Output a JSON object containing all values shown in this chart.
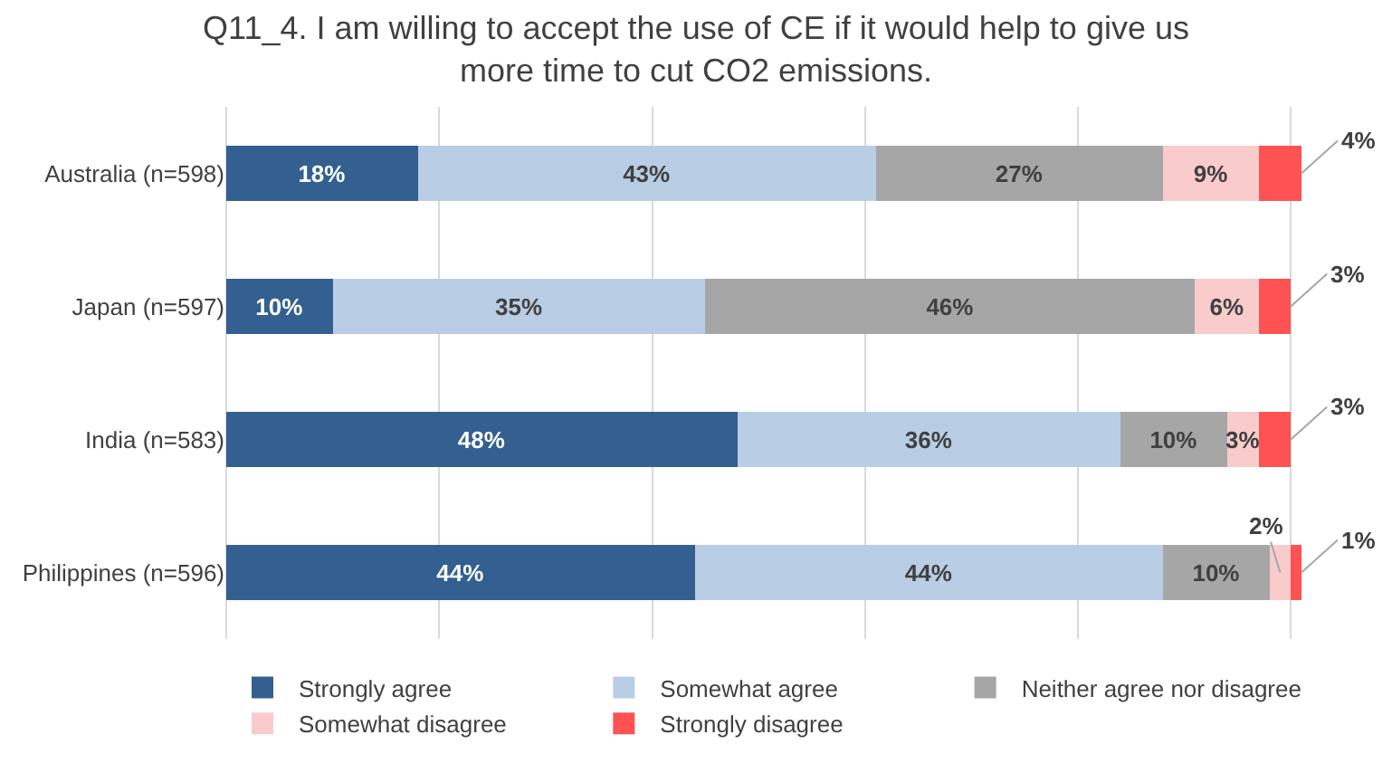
{
  "chart_data": {
    "type": "bar",
    "orientation": "horizontal",
    "stacked": true,
    "title": "Q11_4. I am willing to accept the use of CE if it would help to give us\nmore time to cut CO2 emissions.",
    "categories": [
      "Australia (n=598)",
      "Japan (n=597)",
      "India (n=583)",
      "Philippines (n=596)"
    ],
    "series": [
      {
        "name": "Strongly agree",
        "color": "#335f91",
        "values": [
          18,
          10,
          48,
          44
        ],
        "value_labels": [
          "18%",
          "10%",
          "48%",
          "44%"
        ]
      },
      {
        "name": "Somewhat agree",
        "color": "#b9cde5",
        "values": [
          43,
          35,
          36,
          44
        ],
        "value_labels": [
          "43%",
          "35%",
          "36%",
          "44%"
        ]
      },
      {
        "name": "Neither agree nor disagree",
        "color": "#a6a6a6",
        "values": [
          27,
          46,
          10,
          10
        ],
        "value_labels": [
          "27%",
          "46%",
          "10%",
          "10%"
        ]
      },
      {
        "name": "Somewhat disagree",
        "color": "#f9cbcb",
        "values": [
          9,
          6,
          3,
          2
        ],
        "value_labels": [
          "9%",
          "6%",
          "3%",
          "2%"
        ]
      },
      {
        "name": "Strongly disagree",
        "color": "#ff5252",
        "values": [
          4,
          3,
          3,
          1
        ],
        "value_labels": [
          "4%",
          "3%",
          "3%",
          "1%"
        ]
      }
    ],
    "xlim": [
      0,
      101
    ],
    "xticks": [
      {
        "value": 0,
        "label": null
      },
      {
        "value": 20,
        "label": null
      },
      {
        "value": 40,
        "label": null
      },
      {
        "value": 60,
        "label": null
      },
      {
        "value": 80,
        "label": null
      },
      {
        "value": 100,
        "label": null
      }
    ],
    "tick_labels": "y",
    "grid": "x",
    "legend": "bottom"
  }
}
